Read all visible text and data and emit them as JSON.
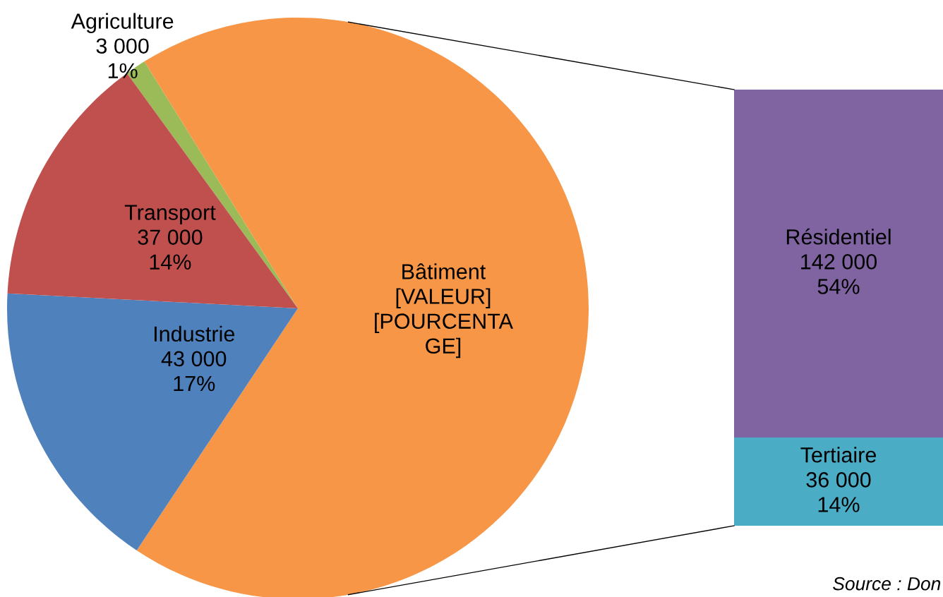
{
  "chart_data": [
    {
      "type": "pie",
      "categories": [
        "Agriculture",
        "Bâtiment",
        "Industrie",
        "Transport"
      ],
      "values": [
        3000,
        178000,
        43000,
        37000
      ],
      "colors": [
        "#9bbb59",
        "#f79646",
        "#4f81bd",
        "#c0504d"
      ],
      "value_labels": [
        "3 000\n1%",
        "[VALEUR]\n[POURCENTA\nGE]",
        "43 000\n17%",
        "37 000\n14%"
      ]
    },
    {
      "type": "bar",
      "stacked": true,
      "categories": [
        null
      ],
      "tick_labels": false,
      "series": [
        {
          "name": "Tertiaire",
          "color": "#4bacc6",
          "values": [
            36000
          ],
          "value_labels": [
            "36 000\n14%"
          ]
        },
        {
          "name": "Résidentiel",
          "color": "#8064a2",
          "values": [
            142000
          ],
          "value_labels": [
            "142 000\n54%"
          ]
        }
      ],
      "annotations": [
        "Source : Don"
      ]
    }
  ]
}
